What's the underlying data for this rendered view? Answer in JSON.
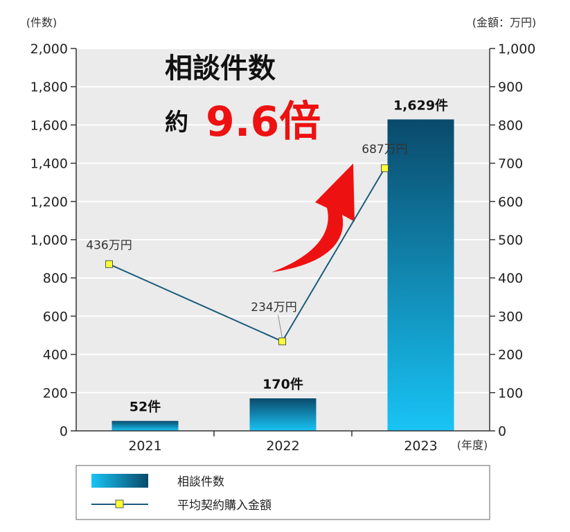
{
  "chart_data": {
    "type": "bar",
    "categories": [
      "2021",
      "2022",
      "2023"
    ],
    "x_unit": "(年度)",
    "y_left": {
      "unit": "(件数)",
      "ylim": [
        0,
        2000
      ],
      "ticks": [
        "0",
        "200",
        "400",
        "600",
        "800",
        "1,000",
        "1,200",
        "1,400",
        "1,600",
        "1,800",
        "2,000"
      ]
    },
    "y_right": {
      "unit": "(金額：万円)",
      "ylim": [
        0,
        1000
      ],
      "ticks": [
        "0",
        "100",
        "200",
        "300",
        "400",
        "500",
        "600",
        "700",
        "800",
        "900",
        "1,000"
      ]
    },
    "series": [
      {
        "name": "相談件数",
        "kind": "bar",
        "axis": "left",
        "values": [
          52,
          170,
          1629
        ],
        "labels": [
          "52件",
          "170件",
          "1,629件"
        ]
      },
      {
        "name": "平均契約購入金額",
        "kind": "line",
        "axis": "right",
        "values": [
          436,
          234,
          687
        ],
        "labels": [
          "436万円",
          "234万円",
          "687万円"
        ]
      }
    ],
    "headline": {
      "title": "相談件数",
      "prefix": "約",
      "multiplier": "9.6倍"
    },
    "grid": true,
    "legend": "bottom",
    "colors": {
      "bar_top": "#0a4a6b",
      "bar_bottom": "#18c4f5",
      "line": "#1a5b7a",
      "marker": "#ffff33",
      "arrow": "#ee1111",
      "plot_bg": "#ebebeb"
    }
  }
}
